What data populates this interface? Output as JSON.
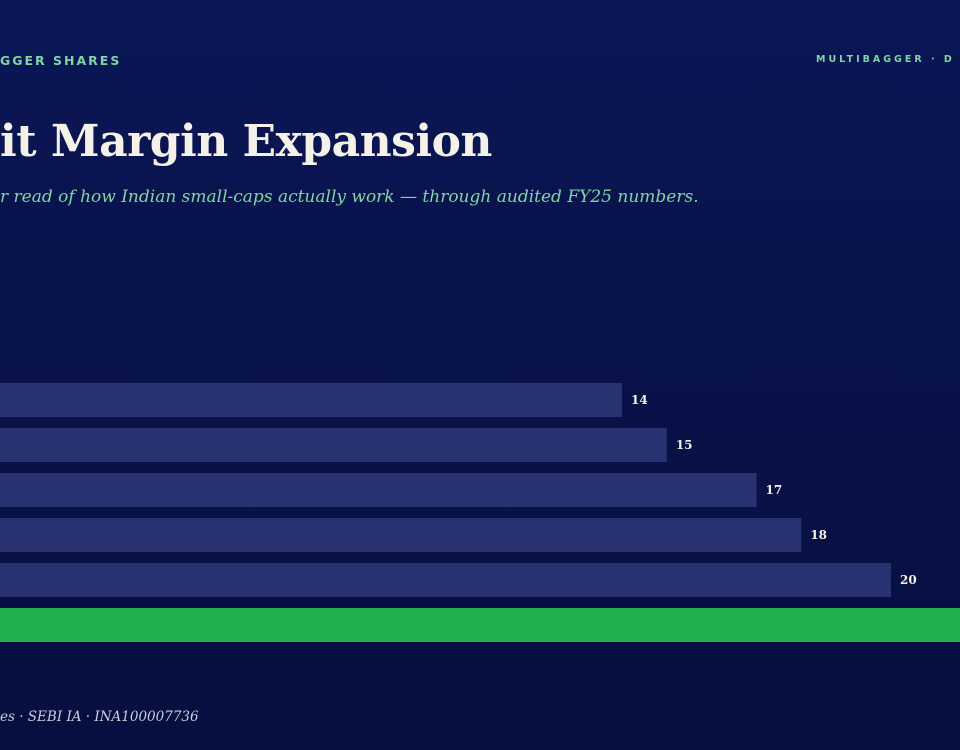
{
  "header": {
    "brand_left": "GGER SHARES",
    "brand_right": "MULTIBAGGER · D"
  },
  "title": "it Margin Expansion",
  "subtitle": "r read of how Indian small-caps actually work — through audited FY25 numbers.",
  "footer": "es · SEBI IA · INA100007736",
  "colors": {
    "background": "#0a1550",
    "bar": "#283270",
    "highlight_bar": "#22b14c",
    "accent_text": "#7fd6a3",
    "label_text": "#f4f1e8"
  },
  "chart_data": {
    "type": "bar",
    "orientation": "horizontal",
    "categories": [
      "",
      "",
      "",
      "",
      "",
      ""
    ],
    "values": [
      14,
      15,
      17,
      18,
      20,
      null
    ],
    "value_labels": [
      "14",
      "15",
      "17",
      "18",
      "20",
      ""
    ],
    "highlight_index": 5,
    "title": "it Margin Expansion",
    "xlabel": "",
    "ylabel": "",
    "grid": false,
    "legend": "none"
  }
}
